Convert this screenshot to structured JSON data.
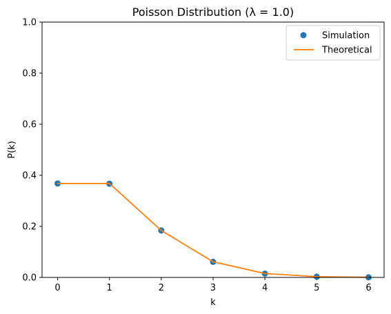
{
  "chart_data": {
    "type": "line",
    "title": "Poisson Distribution (λ = 1.0)",
    "xlabel": "k",
    "ylabel": "P(k)",
    "xlim": [
      -0.3,
      6.3
    ],
    "ylim": [
      0,
      1.0
    ],
    "xticks": [
      "0",
      "1",
      "2",
      "3",
      "4",
      "5",
      "6"
    ],
    "yticks": [
      "0.0",
      "0.2",
      "0.4",
      "0.6",
      "0.8",
      "1.0"
    ],
    "grid": false,
    "legend_position": "top-right",
    "x": [
      0,
      1,
      2,
      3,
      4,
      5,
      6
    ],
    "series": [
      {
        "name": "Simulation",
        "style": "markers",
        "color": "#1f77b4",
        "values": [
          0.368,
          0.367,
          0.184,
          0.061,
          0.015,
          0.003,
          0.0005
        ]
      },
      {
        "name": "Theoretical",
        "style": "line",
        "color": "#ff7f0e",
        "values": [
          0.3679,
          0.3679,
          0.1839,
          0.0613,
          0.0153,
          0.0031,
          0.0005
        ]
      }
    ]
  }
}
